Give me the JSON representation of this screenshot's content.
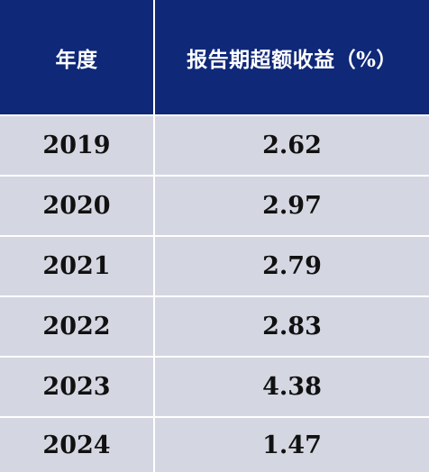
{
  "chart_data": {
    "type": "table",
    "columns": [
      "年度",
      "报告期超额收益（%）"
    ],
    "rows": [
      {
        "year": "2019",
        "value": "2.62"
      },
      {
        "year": "2020",
        "value": "2.97"
      },
      {
        "year": "2021",
        "value": "2.79"
      },
      {
        "year": "2022",
        "value": "2.83"
      },
      {
        "year": "2023",
        "value": "4.38"
      },
      {
        "year": "2024",
        "value": "1.47"
      }
    ]
  },
  "colors": {
    "header_bg": "#0f2878",
    "row_bg": "#d4d7e1",
    "divider": "#ffffff"
  }
}
